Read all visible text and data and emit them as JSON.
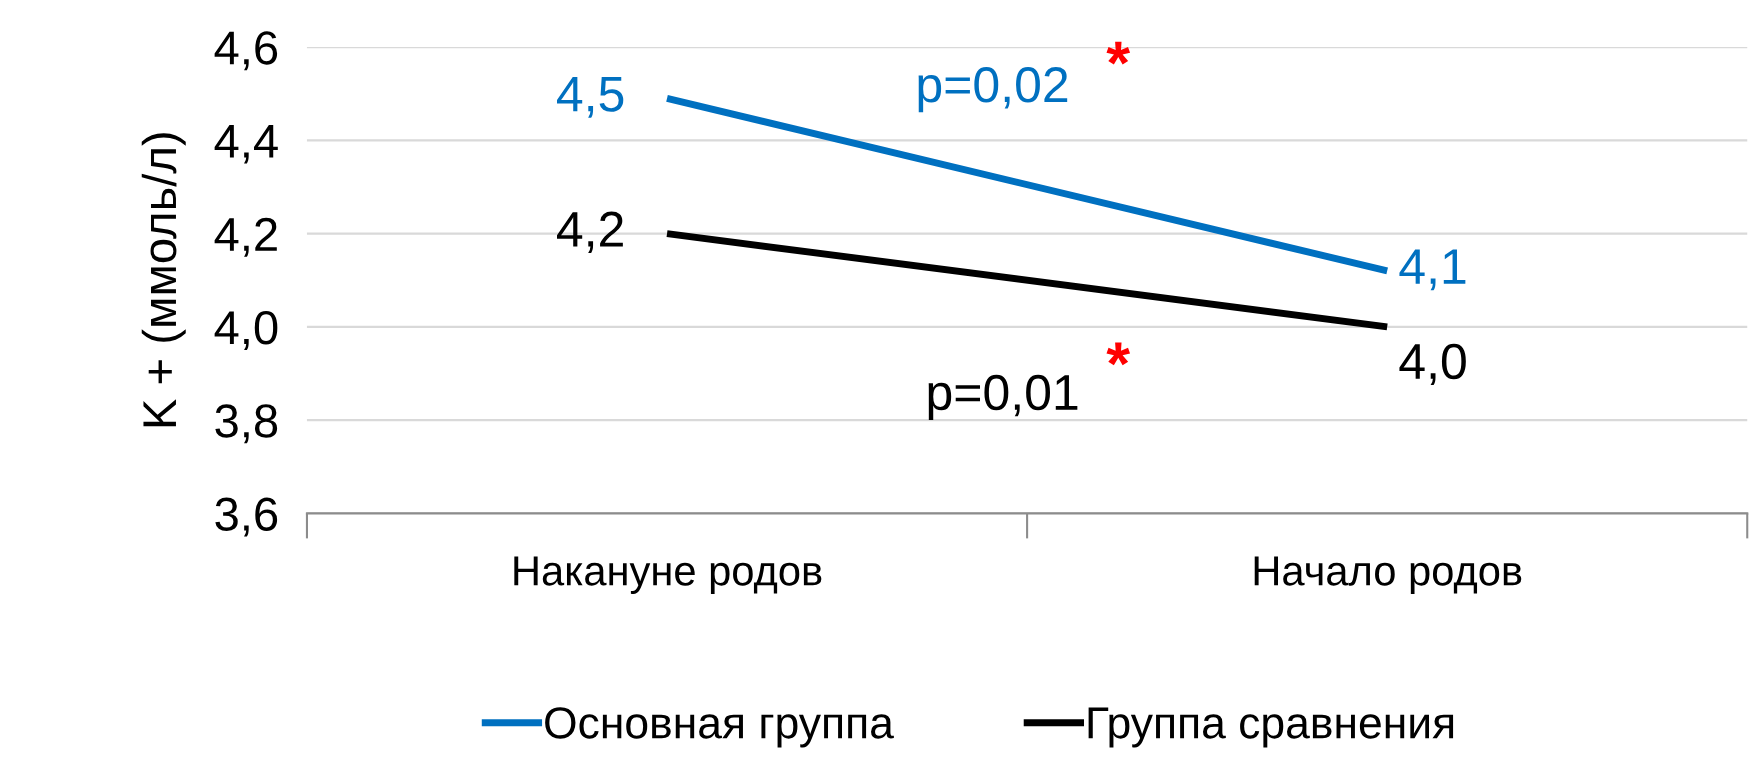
{
  "chart_data": {
    "type": "line",
    "ylabel": "K + (ммоль/л)",
    "categories": [
      "Накануне родов",
      "Начало родов"
    ],
    "series": [
      {
        "name": "Основная группа",
        "color": "#0070c0",
        "values": [
          4.49,
          4.12
        ],
        "value_labels": [
          "4,5",
          "4,1"
        ]
      },
      {
        "name": "Группа сравнения",
        "color": "#000000",
        "values": [
          4.2,
          4.0
        ],
        "value_labels": [
          "4,2",
          "4,0"
        ]
      }
    ],
    "ylim": [
      3.6,
      4.6
    ],
    "yticks": [
      {
        "value": 3.6,
        "label": "3,6"
      },
      {
        "value": 3.8,
        "label": "3,8"
      },
      {
        "value": 4.0,
        "label": "4,0"
      },
      {
        "value": 4.2,
        "label": "4,2"
      },
      {
        "value": 4.4,
        "label": "4,4"
      },
      {
        "value": 4.6,
        "label": "4,6"
      }
    ],
    "grid": "y",
    "legend": "bottom",
    "marker": "none",
    "line_style": "solid",
    "annotations": [
      "p=0,02",
      "*",
      "p=0,01",
      "*"
    ]
  }
}
